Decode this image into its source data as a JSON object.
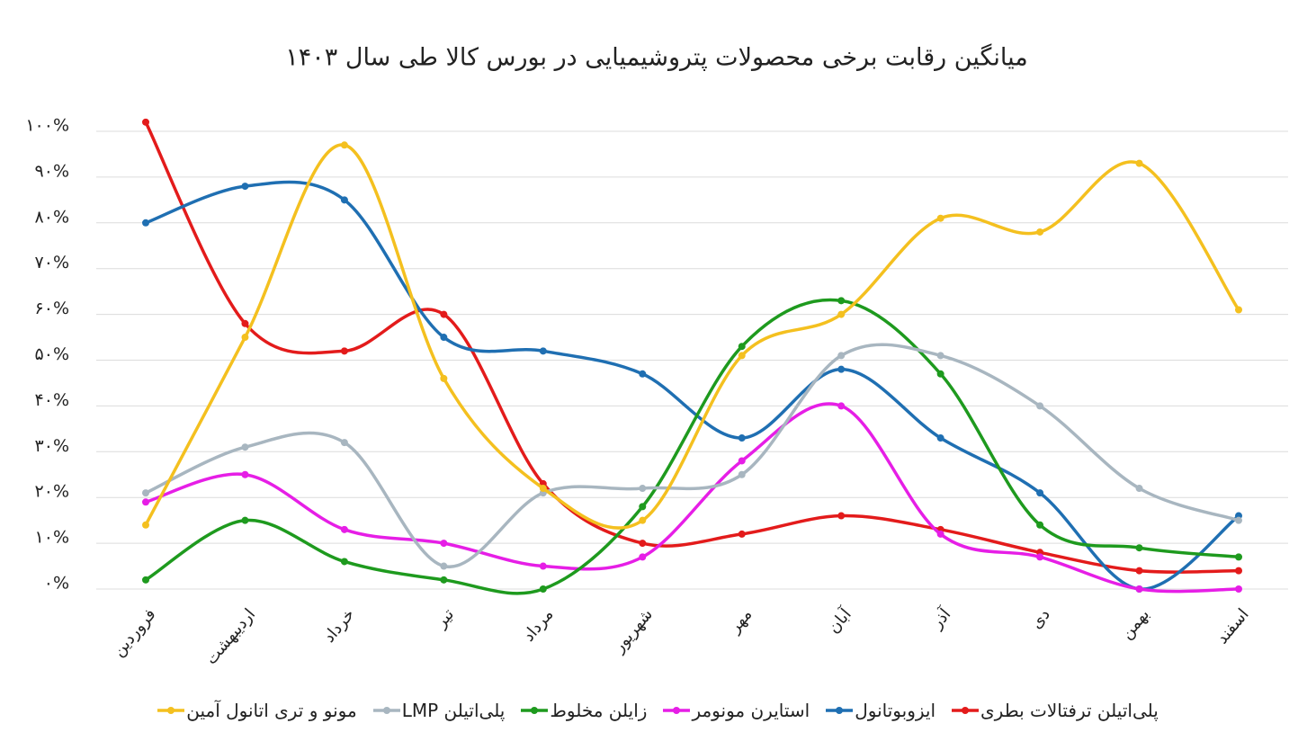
{
  "chart_data": {
    "type": "line",
    "title": "میانگین رقابت برخی محصولات پتروشیمیایی در بورس کالا طی سال ۱۴۰۳",
    "categories": [
      "فروردین",
      "اردیبهشت",
      "خرداد",
      "تیر",
      "مرداد",
      "شهریور",
      "مهر",
      "آبان",
      "آذر",
      "دی",
      "بهمن",
      "اسفند"
    ],
    "series": [
      {
        "name": "پلی‌اتیلن ترفتالات بطری",
        "color": "#e31b1b",
        "values": [
          102,
          58,
          52,
          60,
          23,
          10,
          12,
          16,
          13,
          8,
          4,
          4
        ]
      },
      {
        "name": "ایزوبوتانول",
        "color": "#1f6fb2",
        "values": [
          80,
          88,
          85,
          55,
          52,
          47,
          33,
          48,
          33,
          21,
          0,
          16
        ]
      },
      {
        "name": "استایرن مونومر",
        "color": "#e61ee6",
        "values": [
          19,
          25,
          13,
          10,
          5,
          7,
          28,
          40,
          12,
          7,
          0,
          0
        ]
      },
      {
        "name": "زایلن مخلوط",
        "color": "#1e9a1e",
        "values": [
          2,
          15,
          6,
          2,
          0,
          18,
          53,
          63,
          47,
          14,
          9,
          7
        ]
      },
      {
        "name": "پلی‌اتیلن LMP",
        "color": "#a8b6c0",
        "values": [
          21,
          31,
          32,
          5,
          21,
          22,
          25,
          51,
          51,
          40,
          22,
          15
        ]
      },
      {
        "name": "مونو و تری اتانول آمین",
        "color": "#f4c01f",
        "values": [
          14,
          55,
          97,
          46,
          22,
          15,
          51,
          60,
          81,
          78,
          93,
          61
        ]
      }
    ],
    "ylim": [
      0,
      105
    ],
    "yticks": [
      {
        "value": 0,
        "label": "۰%"
      },
      {
        "value": 10,
        "label": "۱۰%"
      },
      {
        "value": 20,
        "label": "۲۰%"
      },
      {
        "value": 30,
        "label": "۳۰%"
      },
      {
        "value": 40,
        "label": "۴۰%"
      },
      {
        "value": 50,
        "label": "۵۰%"
      },
      {
        "value": 60,
        "label": "۶۰%"
      },
      {
        "value": 70,
        "label": "۷۰%"
      },
      {
        "value": 80,
        "label": "۸۰%"
      },
      {
        "value": 90,
        "label": "۹۰%"
      },
      {
        "value": 100,
        "label": "۱۰۰%"
      }
    ],
    "grid": true,
    "legend": "bottom"
  }
}
